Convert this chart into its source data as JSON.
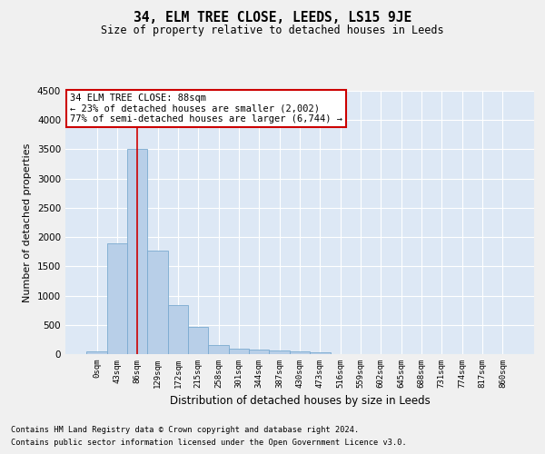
{
  "title": "34, ELM TREE CLOSE, LEEDS, LS15 9JE",
  "subtitle": "Size of property relative to detached houses in Leeds",
  "xlabel": "Distribution of detached houses by size in Leeds",
  "ylabel": "Number of detached properties",
  "bar_color": "#b8cfe8",
  "bar_edge_color": "#7aaad0",
  "background_color": "#dde8f5",
  "grid_color": "#ffffff",
  "fig_background": "#f0f0f0",
  "ylim": [
    0,
    4500
  ],
  "yticks": [
    0,
    500,
    1000,
    1500,
    2000,
    2500,
    3000,
    3500,
    4000,
    4500
  ],
  "categories": [
    "0sqm",
    "43sqm",
    "86sqm",
    "129sqm",
    "172sqm",
    "215sqm",
    "258sqm",
    "301sqm",
    "344sqm",
    "387sqm",
    "430sqm",
    "473sqm",
    "516sqm",
    "559sqm",
    "602sqm",
    "645sqm",
    "688sqm",
    "731sqm",
    "774sqm",
    "817sqm",
    "860sqm"
  ],
  "values": [
    40,
    1900,
    3500,
    1770,
    840,
    460,
    160,
    100,
    75,
    60,
    45,
    35,
    0,
    0,
    0,
    0,
    0,
    0,
    0,
    0,
    0
  ],
  "vline_x_index": 2,
  "vline_color": "#cc0000",
  "annotation_text": "34 ELM TREE CLOSE: 88sqm\n← 23% of detached houses are smaller (2,002)\n77% of semi-detached houses are larger (6,744) →",
  "annotation_box_color": "#ffffff",
  "annotation_box_edge_color": "#cc0000",
  "footer_line1": "Contains HM Land Registry data © Crown copyright and database right 2024.",
  "footer_line2": "Contains public sector information licensed under the Open Government Licence v3.0."
}
